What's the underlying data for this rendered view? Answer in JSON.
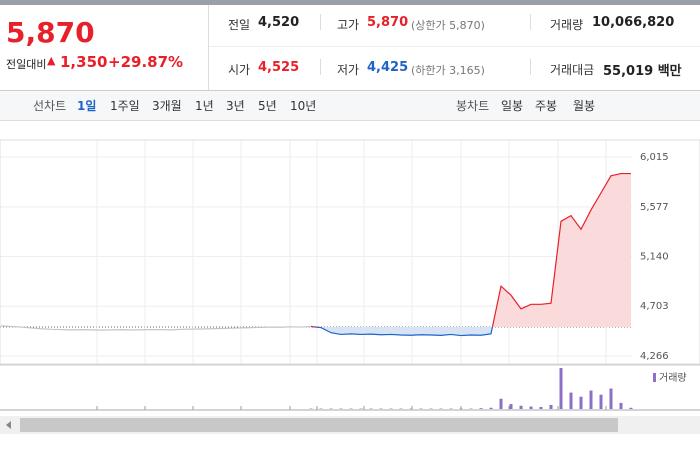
{
  "header": {
    "price": "5,870",
    "change_label": "전일대비",
    "change": "1,350",
    "change_rate": "+29.87%",
    "stats": [
      {
        "label": "전일",
        "value": "4,520"
      },
      {
        "label": "고가",
        "value": "5,870",
        "note": "(상한가 5,870)"
      },
      {
        "label": "거래량",
        "value": "10,066,820"
      },
      {
        "label": "시가",
        "value": "4,525"
      },
      {
        "label": "저가",
        "value": "4,425",
        "note": "(하한가 3,165)"
      },
      {
        "label": "거래대금",
        "value": "55,019 백만"
      }
    ]
  },
  "tabs": {
    "line_label": "선차트",
    "periods": [
      "1일",
      "1주일",
      "3개월",
      "1년",
      "3년",
      "5년",
      "10년"
    ],
    "selected": 0,
    "candle_label": "봉차트",
    "candle_periods": [
      "일봉",
      "주봉",
      "월봉"
    ]
  },
  "chart_data": {
    "type": "line",
    "ylim": [
      4195,
      6165
    ],
    "yticks": [
      {
        "value": 6015,
        "label": "6,015"
      },
      {
        "value": 5577,
        "label": "5,577"
      },
      {
        "value": 5140,
        "label": "5,140"
      },
      {
        "value": 4703,
        "label": "4,703"
      },
      {
        "value": 4266,
        "label": "4,266"
      }
    ],
    "grid": true,
    "baseline": 4520,
    "up_color": "#e8202a",
    "down_color": "#1e64c8",
    "up_fill": "#fbdadc",
    "down_fill": "#d6e4f5",
    "series": [
      {
        "color": "#c4c4c4",
        "values": [
          4530,
          4525,
          4520,
          4512,
          4505,
          4500,
          4498,
          4495,
          4497,
          4495,
          4493,
          4495,
          4497,
          4494,
          4496,
          4498,
          4497,
          4495,
          4500,
          4502,
          4503,
          4505,
          4507,
          4510,
          4513,
          4515,
          4517,
          4520,
          4518,
          4522,
          4520,
          4525,
          null,
          null,
          null,
          null,
          null,
          null,
          null,
          null,
          null,
          null,
          null,
          null,
          null,
          null,
          null,
          null,
          null,
          null,
          null,
          null,
          null,
          null,
          null,
          null,
          null,
          null,
          null,
          null,
          null,
          null,
          null,
          null
        ]
      },
      {
        "values": [
          null,
          null,
          null,
          null,
          null,
          null,
          null,
          null,
          null,
          null,
          null,
          null,
          null,
          null,
          null,
          null,
          null,
          null,
          null,
          null,
          null,
          null,
          null,
          null,
          null,
          null,
          null,
          null,
          null,
          null,
          null,
          4525,
          4515,
          4470,
          4455,
          4460,
          4455,
          4458,
          4452,
          4455,
          4450,
          4448,
          4452,
          4450,
          4447,
          4455,
          4445,
          4450,
          4448,
          4460,
          4880,
          4800,
          4680,
          4720,
          4720,
          4730,
          5450,
          5500,
          5380,
          5550,
          5700,
          5850,
          5870,
          5870
        ]
      }
    ],
    "volume": {
      "name": "거래량",
      "color": "#8c6fc6",
      "ylim": [
        0,
        100
      ],
      "values": [
        null,
        null,
        null,
        null,
        null,
        null,
        null,
        null,
        null,
        null,
        null,
        null,
        null,
        null,
        null,
        null,
        null,
        null,
        null,
        null,
        null,
        null,
        null,
        null,
        null,
        null,
        null,
        null,
        null,
        null,
        null,
        1,
        1,
        1,
        1,
        1,
        1,
        1,
        1,
        1,
        1,
        1,
        1,
        1,
        1,
        1,
        1,
        1,
        2,
        3,
        25,
        12,
        8,
        6,
        5,
        10,
        100,
        40,
        30,
        45,
        35,
        50,
        15,
        3
      ]
    }
  }
}
